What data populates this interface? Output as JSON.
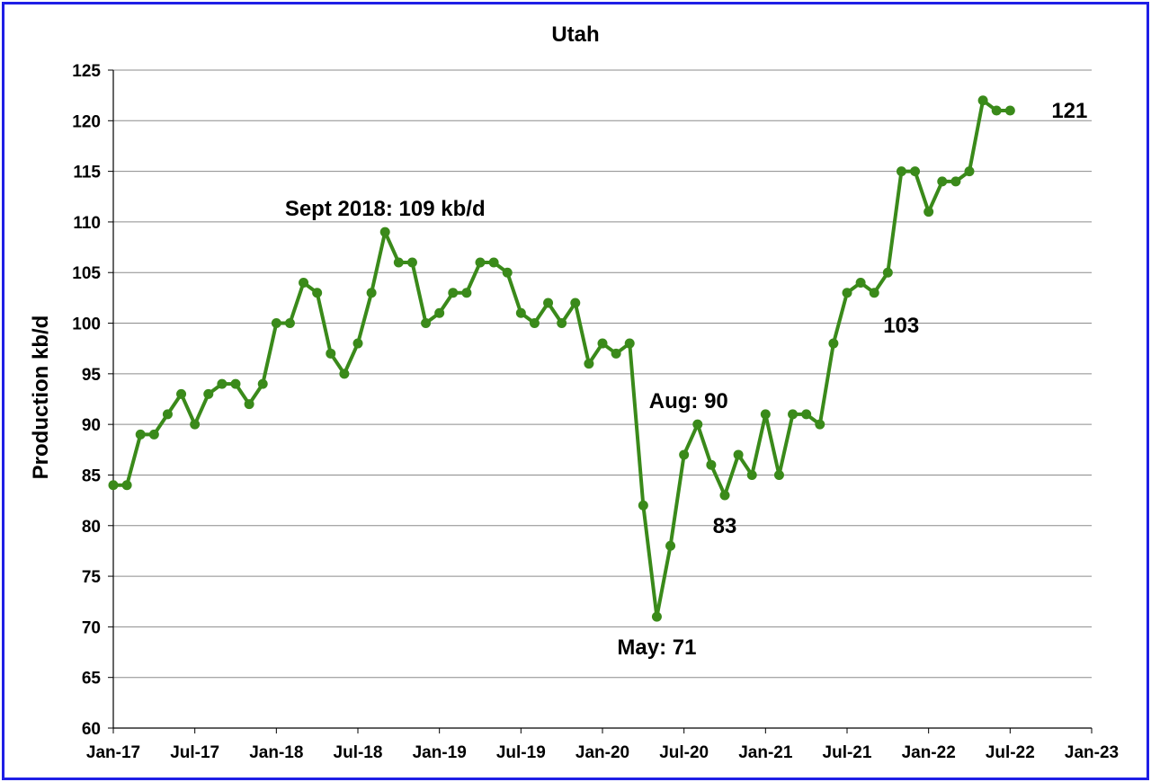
{
  "chart_data": {
    "type": "line",
    "title": "Utah",
    "ylabel": "Production kb/d",
    "xlabel": "",
    "ylim": [
      60,
      125
    ],
    "yticks": [
      60,
      65,
      70,
      75,
      80,
      85,
      90,
      95,
      100,
      105,
      110,
      115,
      120,
      125
    ],
    "xticks": [
      "Jan-17",
      "Jul-17",
      "Jan-18",
      "Jul-18",
      "Jan-19",
      "Jul-19",
      "Jan-20",
      "Jul-20",
      "Jan-21",
      "Jul-21",
      "Jan-22",
      "Jul-22",
      "Jan-23"
    ],
    "x_start": "Jan-17",
    "grid": true,
    "legend": "none",
    "series": [
      {
        "color": "#3a8a1a",
        "values": [
          84,
          84,
          89,
          89,
          91,
          93,
          90,
          93,
          94,
          94,
          92,
          94,
          100,
          100,
          104,
          103,
          97,
          95,
          98,
          103,
          109,
          106,
          106,
          100,
          101,
          103,
          103,
          106,
          106,
          105,
          101,
          100,
          102,
          100,
          102,
          96,
          98,
          97,
          98,
          82,
          71,
          78,
          87,
          90,
          86,
          83,
          87,
          85,
          91,
          85,
          91,
          91,
          90,
          98,
          103,
          104,
          103,
          105,
          115,
          115,
          111,
          114,
          114,
          115,
          122,
          121,
          121
        ]
      }
    ],
    "annotations": [
      {
        "text": "Sept 2018: 109 kb/d",
        "month": 20,
        "value": 109
      },
      {
        "text": "Aug: 90",
        "month": 43,
        "value": 90
      },
      {
        "text": "83",
        "month": 45,
        "value": 83
      },
      {
        "text": "May: 71",
        "month": 40,
        "value": 71
      },
      {
        "text": "103",
        "month": 56,
        "value": 103
      },
      {
        "text": "121",
        "month": 66,
        "value": 121
      }
    ]
  }
}
